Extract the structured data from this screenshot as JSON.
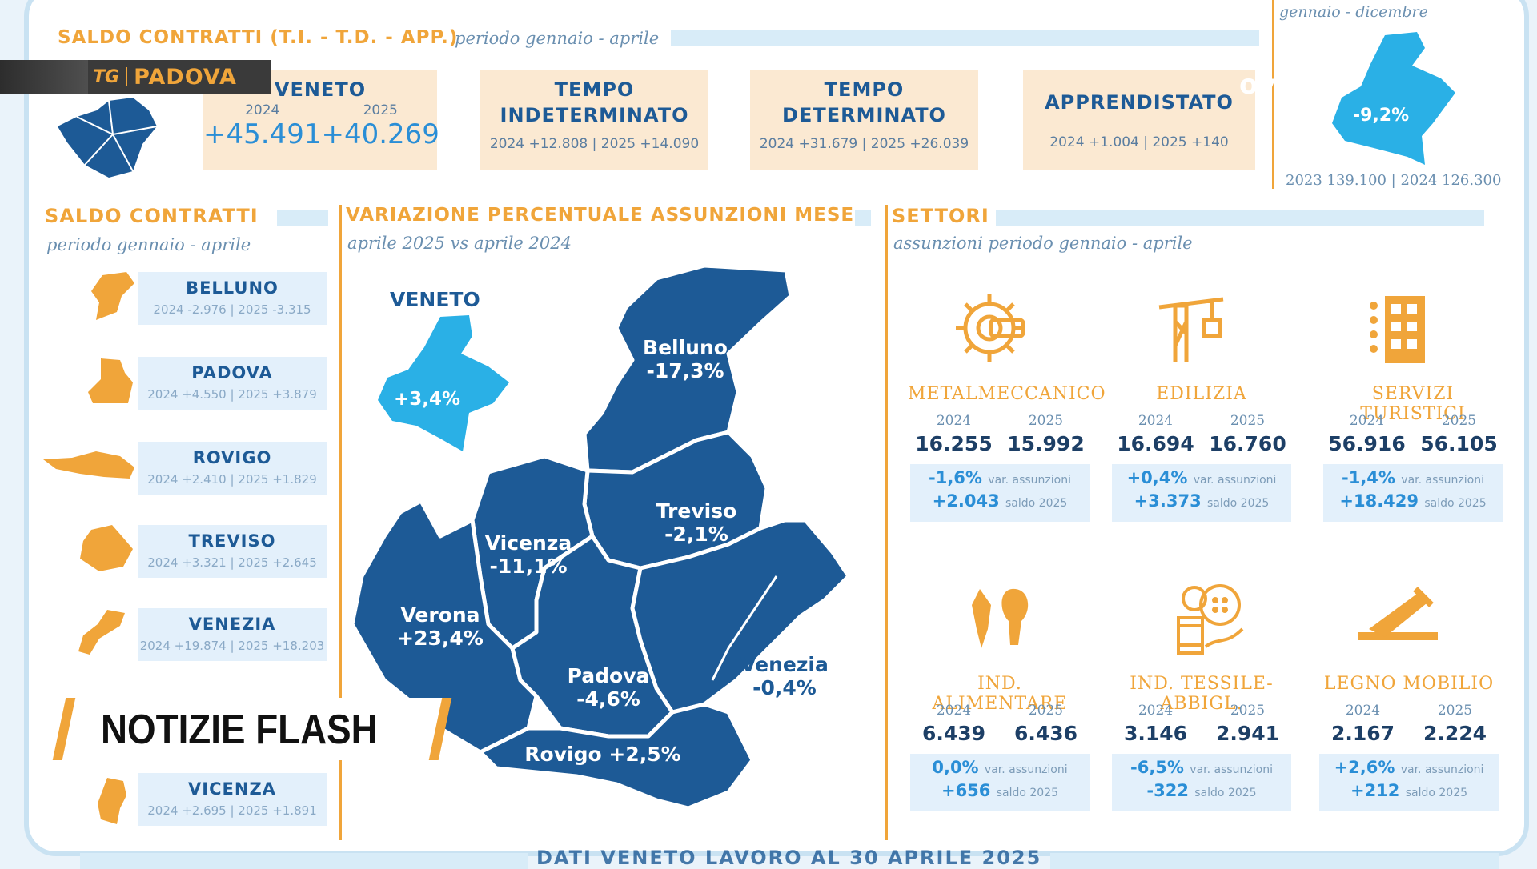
{
  "logo": {
    "mark": "TG",
    "channel": "PADOVA"
  },
  "header": {
    "title": "SALDO CONTRATTI (T.I. - T.D. - APP.)",
    "period": "periodo gennaio - aprile"
  },
  "summary_boxes": [
    {
      "title": "VENETO",
      "y1": "2024",
      "y2": "2025",
      "v1": "+45.491",
      "v2": "+40.269"
    },
    {
      "title_line1": "TEMPO",
      "title_line2": "INDETERMINATO",
      "detail": "2024 +12.808 | 2025 +14.090"
    },
    {
      "title_line1": "TEMPO",
      "title_line2": "DETERMINATO",
      "detail": "2024 +31.679 | 2025 +26.039"
    },
    {
      "title": "APPRENDISTATO",
      "detail": "2024 +1.004 | 2025 +140"
    }
  ],
  "top_right": {
    "period": "gennaio - dicembre",
    "overlay": "ovo",
    "change": "-9,2%",
    "detail": "2023 139.100 | 2024 126.300"
  },
  "left_panel": {
    "title": "SALDO CONTRATTI",
    "period": "periodo gennaio - aprile",
    "provinces": [
      {
        "name": "BELLUNO",
        "values": "2024 -2.976   |  2025 -3.315"
      },
      {
        "name": "PADOVA",
        "values": "2024 +4.550   |  2025 +3.879"
      },
      {
        "name": "ROVIGO",
        "values": "2024 +2.410   |  2025 +1.829"
      },
      {
        "name": "TREVISO",
        "values": "2024 +3.321   |  2025 +2.645"
      },
      {
        "name": "VENEZIA",
        "values": "2024 +19.874 |  2025 +18.203"
      },
      {
        "name": "VICENZA",
        "values": "2024 +2.695   |  2025 +1.891"
      }
    ]
  },
  "center_panel": {
    "title": "VARIAZIONE PERCENTUALE ASSUNZIONI MESE",
    "period": "aprile 2025 vs aprile 2024",
    "veneto_label": "VENETO",
    "veneto_value": "+3,4%",
    "regions": [
      {
        "name": "Belluno",
        "value": "-17,3%"
      },
      {
        "name": "Treviso",
        "value": "-2,1%"
      },
      {
        "name": "Vicenza",
        "value": "-11,1%"
      },
      {
        "name": "Verona",
        "value": "+23,4%"
      },
      {
        "name": "Padova",
        "value": "-4,6%"
      },
      {
        "name": "Venezia",
        "value": "-0,4%"
      },
      {
        "name": "Rovigo",
        "value": "+2,5%"
      }
    ]
  },
  "right_panel": {
    "title": "SETTORI",
    "period": "assunzioni periodo gennaio - aprile",
    "var_label": "var. assunzioni",
    "saldo_label": "saldo 2025",
    "sectors": [
      {
        "name": "METALMECCANICO",
        "y1": "2024",
        "y2": "2025",
        "v1": "16.255",
        "v2": "15.992",
        "change": "-1,6%",
        "saldo": "+2.043",
        "icon": "gear-wrench-icon"
      },
      {
        "name": "EDILIZIA",
        "y1": "2024",
        "y2": "2025",
        "v1": "16.694",
        "v2": "16.760",
        "change": "+0,4%",
        "saldo": "+3.373",
        "icon": "crane-icon"
      },
      {
        "name": "SERVIZI TURISTICI",
        "y1": "2024",
        "y2": "2025",
        "v1": "56.916",
        "v2": "56.105",
        "change": "-1,4%",
        "saldo": "+18.429",
        "icon": "hotel-icon"
      },
      {
        "name": "IND. ALIMENTARE",
        "y1": "2024",
        "y2": "2025",
        "v1": "6.439",
        "v2": "6.436",
        "change": "0,0%",
        "saldo": "+656",
        "icon": "fish-drumstick-icon"
      },
      {
        "name": "IND. TESSILE-ABBIGL.",
        "y1": "2024",
        "y2": "2025",
        "v1": "3.146",
        "v2": "2.941",
        "change": "-6,5%",
        "saldo": "-322",
        "icon": "thread-button-icon"
      },
      {
        "name": "LEGNO MOBILIO",
        "y1": "2024",
        "y2": "2025",
        "v1": "2.167",
        "v2": "2.224",
        "change": "+2,6%",
        "saldo": "+212",
        "icon": "saw-icon"
      }
    ]
  },
  "footer": {
    "text": "DATI VENETO LAVORO AL 30 APRILE 2025"
  },
  "flash": {
    "label": "NOTIZIE FLASH"
  },
  "colors": {
    "orange": "#f0a53a",
    "dark_blue": "#1d5a96",
    "light_blue": "#2ab0e6",
    "box": "#fbe9d2"
  }
}
